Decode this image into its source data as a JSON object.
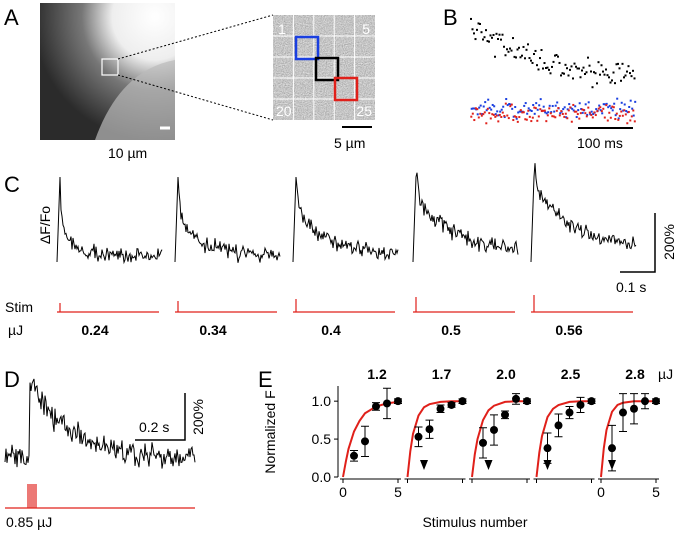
{
  "panel_labels": [
    "A",
    "B",
    "C",
    "D",
    "E"
  ],
  "panel_a": {
    "scale": "10 µm",
    "grid_labels": [
      "1",
      "5",
      "20",
      "25"
    ],
    "inset_scale": "5 µm"
  },
  "panel_b": {
    "scale": "100 ms"
  },
  "panel_c": {
    "ylabel": "ΔF/Fo",
    "vscale": "200%",
    "hscale": "0.1 s",
    "stim": "Stim",
    "unit": "µJ",
    "energies": [
      "0.24",
      "0.34",
      "0.4",
      "0.5",
      "0.56"
    ]
  },
  "panel_d": {
    "hscale": "0.2 s",
    "vscale": "200%",
    "energy": "0.85 µJ"
  },
  "chart_data": {
    "type": "scatter",
    "ylabel": "Normalized F",
    "xlabel": "Stimulus number",
    "unit": "µJ",
    "ylim": [
      0,
      1.2
    ],
    "yticks": [
      {
        "value": 0,
        "label": "0.0"
      },
      {
        "value": 0.5,
        "label": "0.5"
      },
      {
        "value": 1,
        "label": "1.0"
      }
    ],
    "xlim": [
      0,
      5
    ],
    "xticks": [
      0,
      5
    ],
    "x": [
      1,
      2,
      3,
      4,
      5
    ],
    "fit_x": [
      0,
      0.25,
      0.5,
      1,
      1.5,
      2,
      3,
      4,
      5
    ],
    "fit_color": "#e0201a",
    "series": [
      {
        "name": "1.2",
        "color": "#000000",
        "values": [
          0.28,
          0.47,
          0.93,
          0.97,
          1.0
        ],
        "errors": [
          0.07,
          0.2,
          0.05,
          0.2,
          0.03
        ],
        "fit": [
          0,
          0.2,
          0.37,
          0.6,
          0.74,
          0.84,
          0.93,
          0.97,
          0.99
        ]
      },
      {
        "name": "1.7",
        "color": "#000000",
        "values": [
          0.53,
          0.63,
          0.9,
          0.95,
          1.0
        ],
        "errors": [
          0.13,
          0.12,
          0.05,
          0.03,
          0.03
        ],
        "fit": [
          0,
          0.34,
          0.57,
          0.81,
          0.92,
          0.96,
          0.99,
          1.0,
          1.0
        ],
        "arrow_x": 1.5
      },
      {
        "name": "2.0",
        "color": "#000000",
        "values": [
          0.45,
          0.62,
          0.82,
          1.03,
          1.0
        ],
        "errors": [
          0.2,
          0.2,
          0.05,
          0.07,
          0.03
        ],
        "fit": [
          0,
          0.3,
          0.5,
          0.75,
          0.88,
          0.94,
          0.99,
          1.0,
          1.0
        ],
        "arrow_x": 1.5
      },
      {
        "name": "2.5",
        "color": "#000000",
        "values": [
          0.38,
          0.68,
          0.85,
          0.95,
          1.0
        ],
        "errors": [
          0.2,
          0.15,
          0.08,
          0.1,
          0.03
        ],
        "fit": [
          0,
          0.32,
          0.54,
          0.79,
          0.9,
          0.95,
          0.99,
          1.0,
          1.0
        ],
        "arrow_x": 1
      },
      {
        "name": "2.8",
        "color": "#000000",
        "values": [
          0.38,
          0.85,
          0.9,
          1.0,
          1.0
        ],
        "errors": [
          0.3,
          0.25,
          0.2,
          0.1,
          0.03
        ],
        "fit": [
          0,
          0.38,
          0.62,
          0.86,
          0.95,
          0.98,
          1.0,
          1.0,
          1.0
        ],
        "arrow_x": 1
      }
    ]
  }
}
